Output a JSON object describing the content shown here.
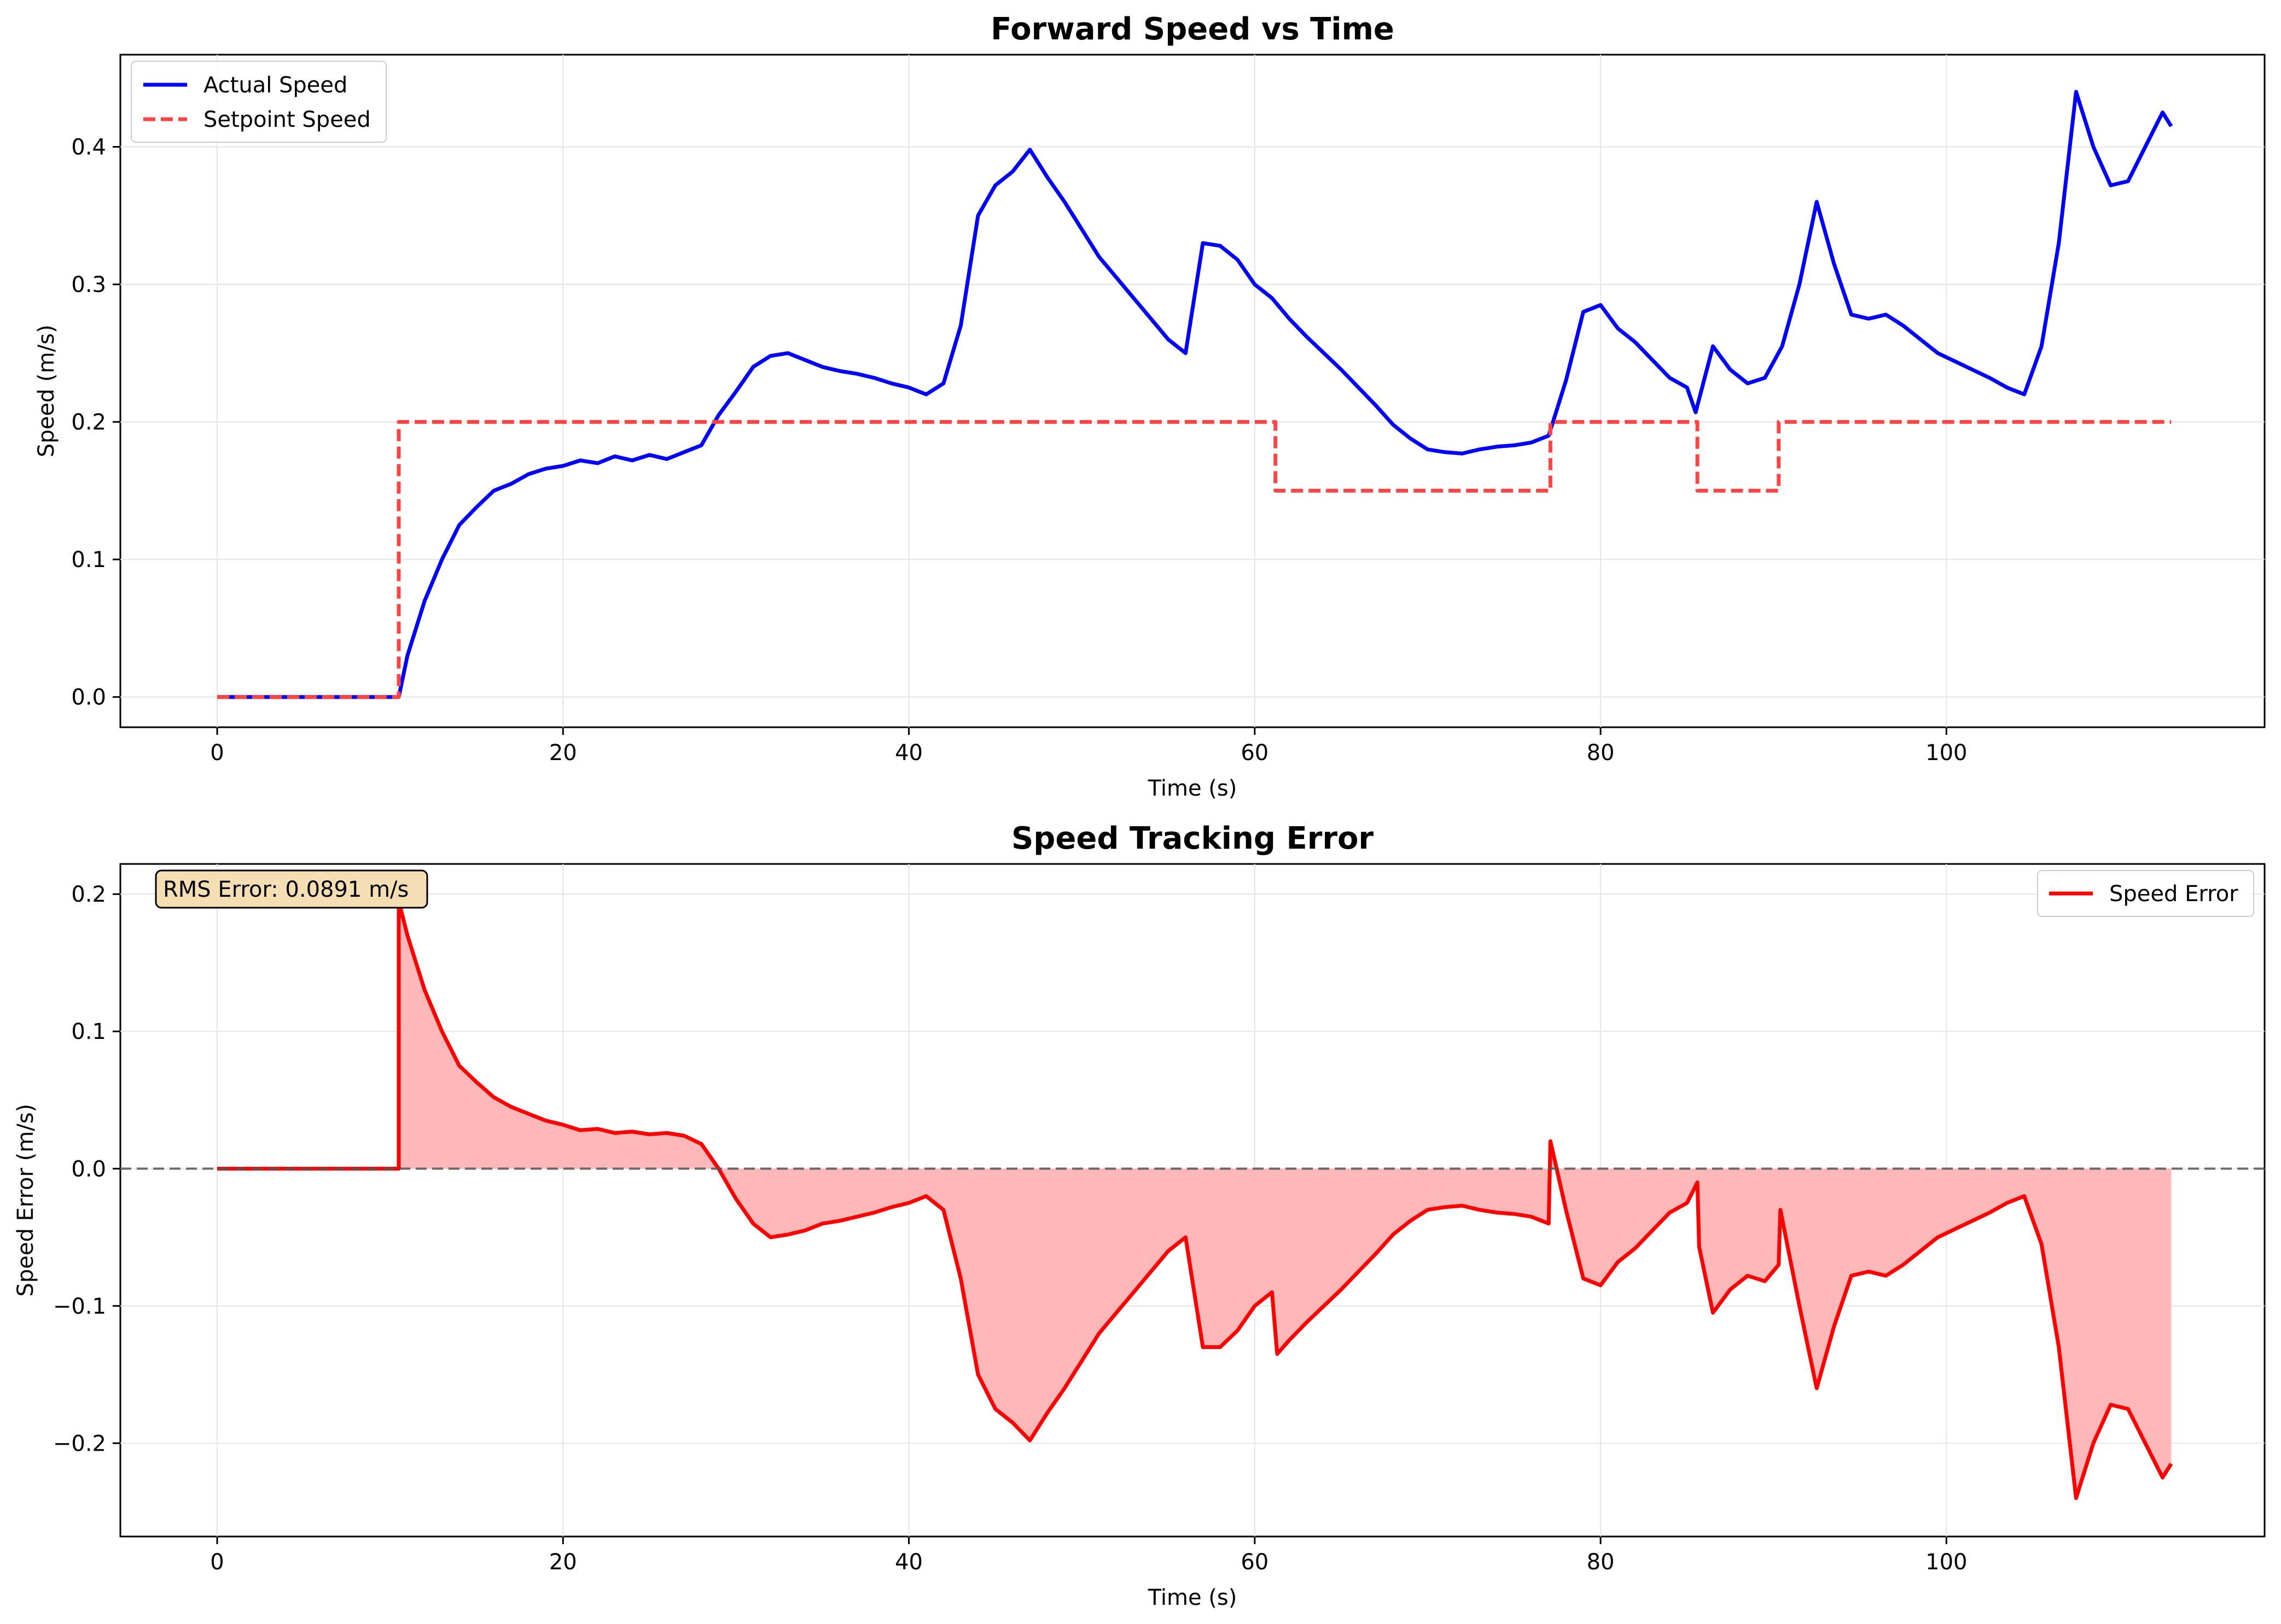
{
  "chart_data": [
    {
      "type": "line",
      "title": "Forward Speed vs Time",
      "xlabel": "Time (s)",
      "ylabel": "Speed (m/s)",
      "xlim": [
        -5.6,
        118.4
      ],
      "ylim": [
        -0.022,
        0.467
      ],
      "xticks": [
        0,
        20,
        40,
        60,
        80,
        100
      ],
      "yticks": [
        0.0,
        0.1,
        0.2,
        0.3,
        0.4
      ],
      "grid": true,
      "legend_position": "upper-left",
      "series": [
        {
          "name": "Actual Speed",
          "color": "#0000ff",
          "style": "solid",
          "points": [
            [
              0,
              0
            ],
            [
              10.5,
              0
            ],
            [
              11,
              0.03
            ],
            [
              12,
              0.07
            ],
            [
              13,
              0.1
            ],
            [
              14,
              0.125
            ],
            [
              15,
              0.138
            ],
            [
              16,
              0.15
            ],
            [
              17,
              0.155
            ],
            [
              18,
              0.162
            ],
            [
              19,
              0.166
            ],
            [
              20,
              0.168
            ],
            [
              21,
              0.172
            ],
            [
              22,
              0.17
            ],
            [
              23,
              0.175
            ],
            [
              24,
              0.172
            ],
            [
              25,
              0.176
            ],
            [
              26,
              0.173
            ],
            [
              27,
              0.178
            ],
            [
              28,
              0.183
            ],
            [
              29,
              0.205
            ],
            [
              30,
              0.222
            ],
            [
              31,
              0.24
            ],
            [
              32,
              0.248
            ],
            [
              33,
              0.25
            ],
            [
              34,
              0.245
            ],
            [
              35,
              0.24
            ],
            [
              36,
              0.237
            ],
            [
              37,
              0.235
            ],
            [
              38,
              0.232
            ],
            [
              39,
              0.228
            ],
            [
              40,
              0.225
            ],
            [
              41,
              0.22
            ],
            [
              42,
              0.228
            ],
            [
              43,
              0.27
            ],
            [
              44,
              0.35
            ],
            [
              45,
              0.372
            ],
            [
              46,
              0.382
            ],
            [
              47,
              0.398
            ],
            [
              48,
              0.378
            ],
            [
              49,
              0.36
            ],
            [
              50,
              0.34
            ],
            [
              51,
              0.32
            ],
            [
              52,
              0.305
            ],
            [
              53,
              0.29
            ],
            [
              54,
              0.275
            ],
            [
              55,
              0.26
            ],
            [
              56,
              0.25
            ],
            [
              57,
              0.33
            ],
            [
              58,
              0.328
            ],
            [
              59,
              0.318
            ],
            [
              60,
              0.3
            ],
            [
              61,
              0.29
            ],
            [
              62,
              0.275
            ],
            [
              63,
              0.262
            ],
            [
              64,
              0.25
            ],
            [
              65,
              0.238
            ],
            [
              66,
              0.225
            ],
            [
              67,
              0.212
            ],
            [
              68,
              0.198
            ],
            [
              69,
              0.188
            ],
            [
              70,
              0.18
            ],
            [
              71,
              0.178
            ],
            [
              72,
              0.177
            ],
            [
              73,
              0.18
            ],
            [
              74,
              0.182
            ],
            [
              75,
              0.183
            ],
            [
              76,
              0.185
            ],
            [
              77,
              0.19
            ],
            [
              78,
              0.23
            ],
            [
              79,
              0.28
            ],
            [
              80,
              0.285
            ],
            [
              81,
              0.268
            ],
            [
              82,
              0.258
            ],
            [
              83,
              0.245
            ],
            [
              84,
              0.232
            ],
            [
              85,
              0.225
            ],
            [
              85.5,
              0.207
            ],
            [
              86.5,
              0.255
            ],
            [
              87.5,
              0.238
            ],
            [
              88.5,
              0.228
            ],
            [
              89.5,
              0.232
            ],
            [
              90.5,
              0.255
            ],
            [
              91.5,
              0.3
            ],
            [
              92.5,
              0.36
            ],
            [
              93.5,
              0.315
            ],
            [
              94.5,
              0.278
            ],
            [
              95.5,
              0.275
            ],
            [
              96.5,
              0.278
            ],
            [
              97.5,
              0.27
            ],
            [
              98.5,
              0.26
            ],
            [
              99.5,
              0.25
            ],
            [
              100.5,
              0.244
            ],
            [
              101.5,
              0.238
            ],
            [
              102.5,
              0.232
            ],
            [
              103.5,
              0.225
            ],
            [
              104.5,
              0.22
            ],
            [
              105.5,
              0.255
            ],
            [
              106.5,
              0.33
            ],
            [
              107.5,
              0.44
            ],
            [
              108.5,
              0.4
            ],
            [
              109.5,
              0.372
            ],
            [
              110.5,
              0.375
            ],
            [
              111.5,
              0.4
            ],
            [
              112.5,
              0.425
            ],
            [
              113,
              0.415
            ]
          ]
        },
        {
          "name": "Setpoint Speed",
          "color": "#ff4444",
          "style": "dashed",
          "points": [
            [
              0,
              0
            ],
            [
              10.5,
              0
            ],
            [
              10.5,
              0.2
            ],
            [
              61.2,
              0.2
            ],
            [
              61.2,
              0.15
            ],
            [
              77.1,
              0.15
            ],
            [
              77.1,
              0.2
            ],
            [
              85.6,
              0.2
            ],
            [
              85.6,
              0.15
            ],
            [
              90.3,
              0.15
            ],
            [
              90.3,
              0.2
            ],
            [
              113,
              0.2
            ]
          ]
        }
      ]
    },
    {
      "type": "area",
      "title": "Speed Tracking Error",
      "xlabel": "Time (s)",
      "ylabel": "Speed Error (m/s)",
      "xlim": [
        -5.6,
        118.4
      ],
      "ylim": [
        -0.268,
        0.222
      ],
      "xticks": [
        0,
        20,
        40,
        60,
        80,
        100
      ],
      "yticks": [
        -0.2,
        -0.1,
        0.0,
        0.1,
        0.2
      ],
      "grid": true,
      "legend_position": "upper-right",
      "annotation": "RMS Error: 0.0891 m/s",
      "zero_line": true,
      "series": [
        {
          "name": "Speed Error",
          "color": "#ff0000",
          "fill": "#ffb3b3",
          "points": [
            [
              0,
              0
            ],
            [
              10.5,
              0
            ],
            [
              10.5,
              0.195
            ],
            [
              11,
              0.17
            ],
            [
              12,
              0.13
            ],
            [
              13,
              0.1
            ],
            [
              14,
              0.075
            ],
            [
              15,
              0.063
            ],
            [
              16,
              0.052
            ],
            [
              17,
              0.045
            ],
            [
              18,
              0.04
            ],
            [
              19,
              0.035
            ],
            [
              20,
              0.032
            ],
            [
              21,
              0.028
            ],
            [
              22,
              0.029
            ],
            [
              23,
              0.026
            ],
            [
              24,
              0.027
            ],
            [
              25,
              0.025
            ],
            [
              26,
              0.026
            ],
            [
              27,
              0.024
            ],
            [
              28,
              0.018
            ],
            [
              29,
              0.0
            ],
            [
              30,
              -0.022
            ],
            [
              31,
              -0.04
            ],
            [
              32,
              -0.05
            ],
            [
              33,
              -0.048
            ],
            [
              34,
              -0.045
            ],
            [
              35,
              -0.04
            ],
            [
              36,
              -0.038
            ],
            [
              37,
              -0.035
            ],
            [
              38,
              -0.032
            ],
            [
              39,
              -0.028
            ],
            [
              40,
              -0.025
            ],
            [
              41,
              -0.02
            ],
            [
              42,
              -0.03
            ],
            [
              43,
              -0.08
            ],
            [
              44,
              -0.15
            ],
            [
              45,
              -0.175
            ],
            [
              46,
              -0.185
            ],
            [
              47,
              -0.198
            ],
            [
              48,
              -0.178
            ],
            [
              49,
              -0.16
            ],
            [
              50,
              -0.14
            ],
            [
              51,
              -0.12
            ],
            [
              52,
              -0.105
            ],
            [
              53,
              -0.09
            ],
            [
              54,
              -0.075
            ],
            [
              55,
              -0.06
            ],
            [
              56,
              -0.05
            ],
            [
              57,
              -0.13
            ],
            [
              58,
              -0.13
            ],
            [
              59,
              -0.118
            ],
            [
              60,
              -0.1
            ],
            [
              61,
              -0.09
            ],
            [
              61.3,
              -0.135
            ],
            [
              62,
              -0.125
            ],
            [
              63,
              -0.112
            ],
            [
              64,
              -0.1
            ],
            [
              65,
              -0.088
            ],
            [
              66,
              -0.075
            ],
            [
              67,
              -0.062
            ],
            [
              68,
              -0.048
            ],
            [
              69,
              -0.038
            ],
            [
              70,
              -0.03
            ],
            [
              71,
              -0.028
            ],
            [
              72,
              -0.027
            ],
            [
              73,
              -0.03
            ],
            [
              74,
              -0.032
            ],
            [
              75,
              -0.033
            ],
            [
              76,
              -0.035
            ],
            [
              77,
              -0.04
            ],
            [
              77.1,
              0.02
            ],
            [
              78,
              -0.03
            ],
            [
              79,
              -0.08
            ],
            [
              80,
              -0.085
            ],
            [
              81,
              -0.068
            ],
            [
              82,
              -0.058
            ],
            [
              83,
              -0.045
            ],
            [
              84,
              -0.032
            ],
            [
              85,
              -0.025
            ],
            [
              85.6,
              -0.01
            ],
            [
              85.7,
              -0.057
            ],
            [
              86.5,
              -0.105
            ],
            [
              87.5,
              -0.088
            ],
            [
              88.5,
              -0.078
            ],
            [
              89.5,
              -0.082
            ],
            [
              90.3,
              -0.07
            ],
            [
              90.4,
              -0.03
            ],
            [
              91.5,
              -0.1
            ],
            [
              92.5,
              -0.16
            ],
            [
              93.5,
              -0.115
            ],
            [
              94.5,
              -0.078
            ],
            [
              95.5,
              -0.075
            ],
            [
              96.5,
              -0.078
            ],
            [
              97.5,
              -0.07
            ],
            [
              98.5,
              -0.06
            ],
            [
              99.5,
              -0.05
            ],
            [
              100.5,
              -0.044
            ],
            [
              101.5,
              -0.038
            ],
            [
              102.5,
              -0.032
            ],
            [
              103.5,
              -0.025
            ],
            [
              104.5,
              -0.02
            ],
            [
              105.5,
              -0.055
            ],
            [
              106.5,
              -0.13
            ],
            [
              107.5,
              -0.24
            ],
            [
              108.5,
              -0.2
            ],
            [
              109.5,
              -0.172
            ],
            [
              110.5,
              -0.175
            ],
            [
              111.5,
              -0.2
            ],
            [
              112.5,
              -0.225
            ],
            [
              113,
              -0.215
            ]
          ]
        }
      ]
    }
  ]
}
